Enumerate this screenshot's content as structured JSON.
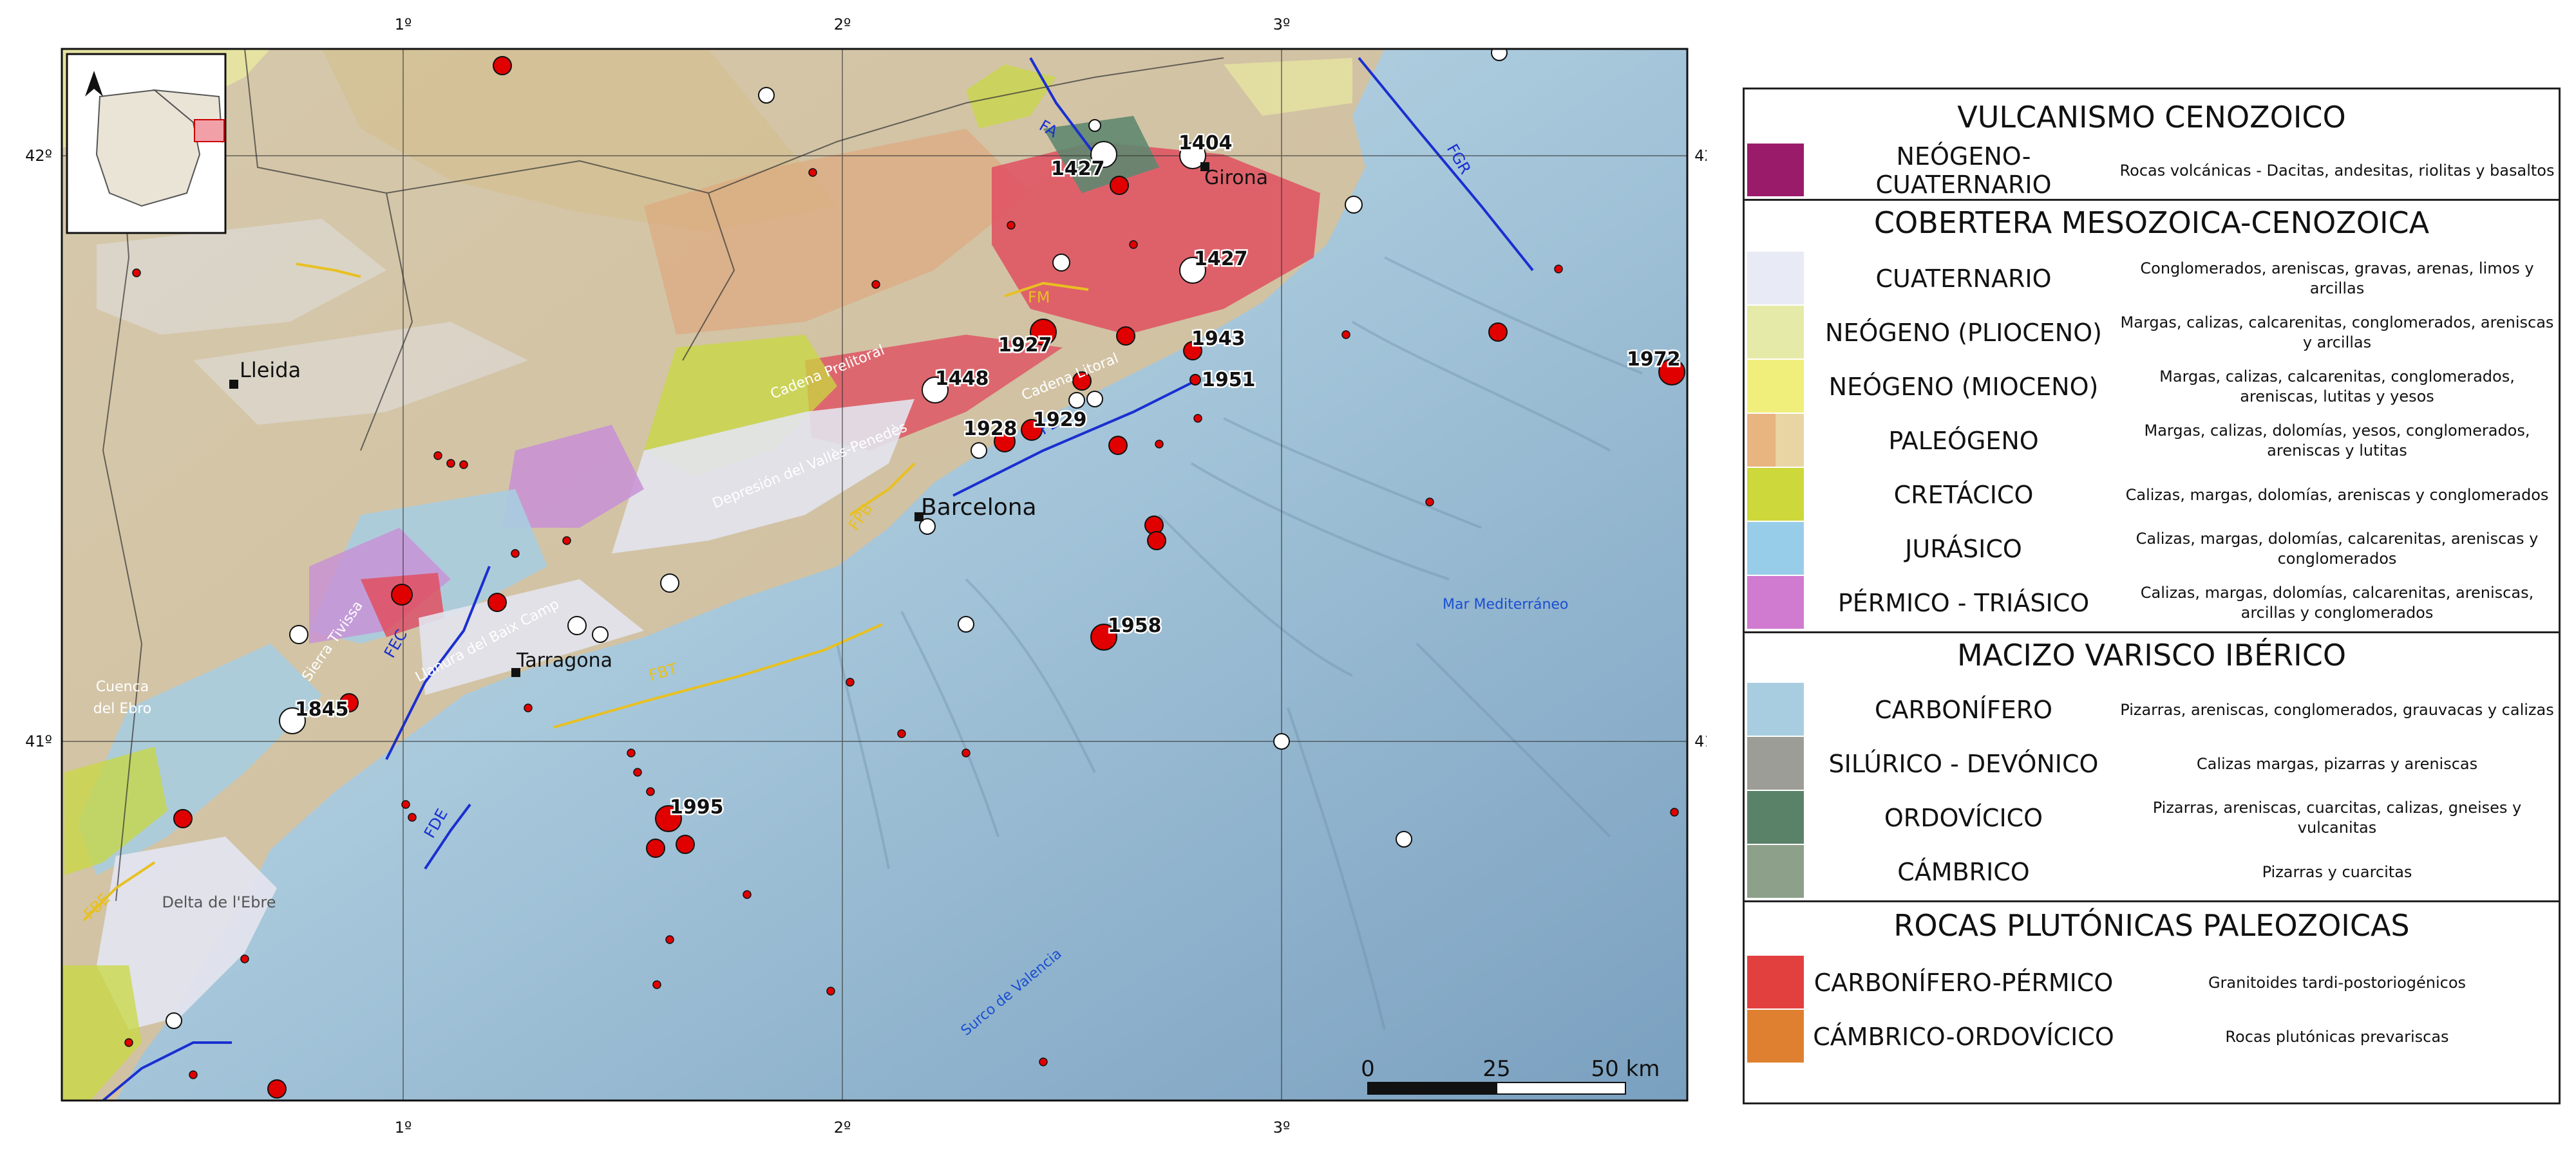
{
  "map": {
    "lon_labels": [
      "1º",
      "2º",
      "3º"
    ],
    "lat_labels": [
      "42º",
      "41º"
    ],
    "cities": {
      "lleida": "Lleida",
      "barcelona": "Barcelona",
      "tarragona": "Tarragona",
      "girona": "Girona"
    },
    "region_labels": {
      "cuenca_ebro": [
        "Cuenca",
        "del Ebro"
      ],
      "delta": "Delta de l'Ebre",
      "cadena_prelitoral": "Cadena Prelitoral",
      "cadena_litoral": "Cadena Litoral",
      "depresion": "Depresión del Vallès-Penedès",
      "llanura": "Llanura del Baix Camp",
      "sierra": "Sierra Tivissa",
      "mar": "Mar Mediterráneo",
      "surco": "Surco de Valencia"
    },
    "fault_labels": [
      "FA",
      "FM",
      "FB",
      "FEC",
      "FDE",
      "FBT",
      "FPB",
      "FGR",
      "FBE"
    ],
    "event_years": [
      "1404",
      "1427",
      "1427",
      "1927",
      "1943",
      "1951",
      "1448",
      "1928",
      "1929",
      "1958",
      "1972",
      "1845",
      "1995"
    ],
    "scalebar": {
      "ticks": [
        "0",
        "25",
        "50 km"
      ]
    },
    "colors": {
      "sea_shallow": "#b5d3e3",
      "sea_deep": "#7ea6c6",
      "land": "#d8cab0",
      "quaternary": "#e2e4ee",
      "granite": "#e0505c",
      "permotrias": "#c890d6",
      "neogene": "#e8e8a0",
      "cretaceous": "#c8d840",
      "fault_blue": "#1a2fd0",
      "fault_yellow": "#e8c020",
      "epicenter": "#e00000"
    }
  },
  "legend": {
    "sections": [
      {
        "title": "VULCANISMO CENOZOICO",
        "rows": [
          {
            "name": "NEÓGENO- CUATERNARIO",
            "desc": "Rocas volcánicas - Dacitas, andesitas, riolitas y basaltos",
            "colors": [
              "#9b1b6b"
            ]
          }
        ]
      },
      {
        "title": "COBERTERA MESOZOICA-CENOZOICA",
        "rows": [
          {
            "name": "CUATERNARIO",
            "desc": "Conglomerados, areniscas, gravas, arenas, limos y arcillas",
            "colors": [
              "#e8ebf5"
            ]
          },
          {
            "name": "NEÓGENO (PLIOCENO)",
            "desc": "Margas, calizas, calcarenitas, conglomerados, areniscas y arcillas",
            "colors": [
              "#e6eaa8"
            ]
          },
          {
            "name": "NEÓGENO (MIOCENO)",
            "desc": "Margas, calizas, calcarenitas, conglomerados, areniscas, lutitas y yesos",
            "colors": [
              "#f0ef7c"
            ]
          },
          {
            "name": "PALEÓGENO",
            "desc": "Margas, calizas, dolomías, yesos, conglomerados, areniscas y lutitas",
            "colors": [
              "#e8b480",
              "#e9d4a4"
            ]
          },
          {
            "name": "CRETÁCICO",
            "desc": "Calizas, margas, dolomías, areniscas y conglomerados",
            "colors": [
              "#cdd83a"
            ]
          },
          {
            "name": "JURÁSICO",
            "desc": "Calizas, margas, dolomías, calcarenitas, areniscas y conglomerados",
            "colors": [
              "#98cdea"
            ]
          },
          {
            "name": "PÉRMICO - TRIÁSICO",
            "desc": "Calizas, margas, dolomías, calcarenitas, areniscas, arcillas y  conglomerados",
            "colors": [
              "#d07ad0"
            ]
          }
        ]
      },
      {
        "title": "MACIZO VARISCO IBÉRICO",
        "rows": [
          {
            "name": "CARBONÍFERO",
            "desc": "Pizarras, areniscas, conglomerados, grauvacas  y calizas",
            "colors": [
              "#a9cde0"
            ]
          },
          {
            "name": "SILÚRICO - DEVÓNICO",
            "desc": "Calizas margas, pizarras y areniscas",
            "colors": [
              "#9d9d98"
            ]
          },
          {
            "name": "ORDOVÍCICO",
            "desc": "Pizarras, areniscas, cuarcitas, calizas, gneises y vulcanitas",
            "colors": [
              "#5a8269"
            ]
          },
          {
            "name": "CÁMBRICO",
            "desc": "Pizarras y cuarcitas",
            "colors": [
              "#8ca08a"
            ]
          }
        ]
      },
      {
        "title": "ROCAS PLUTÓNICAS PALEOZOICAS",
        "rows": [
          {
            "name": "CARBONÍFERO-PÉRMICO",
            "desc": "Granitoides tardi-postoriogénicos",
            "colors": [
              "#e2403f"
            ]
          },
          {
            "name": "CÁMBRICO-ORDOVÍCICO",
            "desc": "Rocas plutónicas prevariscas",
            "colors": [
              "#de8030"
            ]
          }
        ]
      }
    ]
  }
}
